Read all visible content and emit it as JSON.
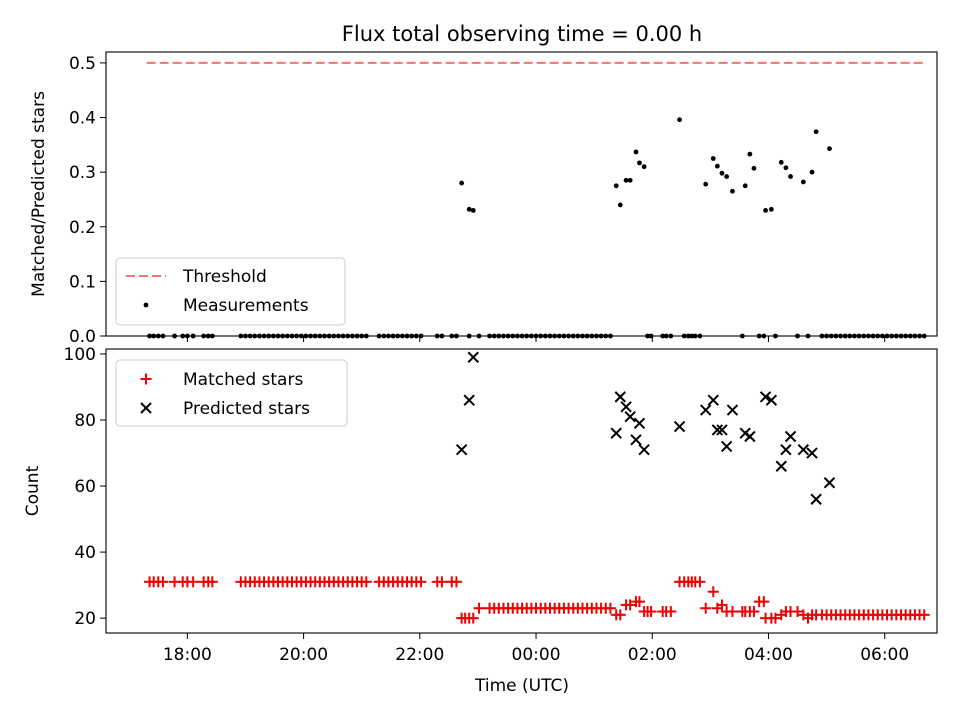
{
  "title": "Flux total observing time = 0.00 h",
  "colors": {
    "threshold": "#ff7070",
    "measurement": "#000000",
    "matched": "#ee0000",
    "predicted": "#000000"
  },
  "chart_data": [
    {
      "type": "scatter",
      "ylabel": "Matched/Predicted stars",
      "ylim": [
        0,
        0.52
      ],
      "yticks": [
        "0.0",
        "0.1",
        "0.2",
        "0.3",
        "0.4",
        "0.5"
      ],
      "xlim": [
        16.6,
        30.9
      ],
      "legend": {
        "placement": "lower-left",
        "entries": [
          "Threshold",
          "Measurements"
        ]
      },
      "threshold": {
        "name": "Threshold",
        "value": 0.5,
        "x_range": [
          17.3,
          30.7
        ]
      },
      "measurements": {
        "name": "Measurements",
        "x": [
          22.72,
          22.85,
          22.92,
          25.38,
          25.45,
          25.55,
          25.62,
          25.72,
          25.78,
          25.86,
          26.47,
          26.92,
          27.05,
          27.12,
          27.2,
          27.28,
          27.38,
          27.6,
          27.68,
          27.75,
          27.95,
          28.05,
          28.22,
          28.3,
          28.38,
          28.6,
          28.75,
          28.82,
          29.05
        ],
        "y": [
          0.28,
          0.232,
          0.23,
          0.275,
          0.24,
          0.285,
          0.285,
          0.337,
          0.317,
          0.31,
          0.396,
          0.278,
          0.325,
          0.311,
          0.298,
          0.292,
          0.265,
          0.275,
          0.333,
          0.307,
          0.23,
          0.232,
          0.318,
          0.308,
          0.292,
          0.282,
          0.3,
          0.374,
          0.343
        ],
        "zero_x": [
          17.35,
          17.42,
          17.5,
          17.58,
          17.78,
          17.92,
          18.0,
          18.1,
          18.28,
          18.36,
          18.43,
          18.92,
          19.0,
          19.08,
          19.16,
          19.24,
          19.32,
          19.4,
          19.48,
          19.56,
          19.64,
          19.72,
          19.8,
          19.88,
          19.96,
          20.04,
          20.12,
          20.2,
          20.28,
          20.36,
          20.44,
          20.52,
          20.6,
          20.68,
          20.76,
          20.84,
          20.92,
          21.0,
          21.08,
          21.3,
          21.38,
          21.46,
          21.54,
          21.62,
          21.7,
          21.78,
          21.86,
          21.94,
          22.02,
          22.3,
          22.38,
          22.55,
          22.63,
          22.85,
          23.02,
          23.2,
          23.28,
          23.36,
          23.44,
          23.52,
          23.6,
          23.68,
          23.76,
          23.84,
          23.92,
          24.0,
          24.08,
          24.16,
          24.24,
          24.32,
          24.4,
          24.48,
          24.56,
          24.64,
          24.72,
          24.8,
          24.88,
          24.96,
          25.04,
          25.12,
          25.2,
          25.28,
          25.92,
          25.98,
          26.18,
          26.24,
          26.32,
          26.55,
          26.62,
          26.68,
          26.74,
          26.82,
          27.55,
          27.84,
          27.92,
          28.12,
          28.5,
          28.68,
          28.92,
          29.0,
          29.08,
          29.16,
          29.24,
          29.32,
          29.4,
          29.48,
          29.56,
          29.64,
          29.72,
          29.8,
          29.88,
          29.96,
          30.04,
          30.12,
          30.2,
          30.28,
          30.36,
          30.44,
          30.52,
          30.6,
          30.68
        ]
      }
    },
    {
      "type": "scatter",
      "xlabel": "Time (UTC)",
      "ylabel": "Count",
      "ylim": [
        15.5,
        101.5
      ],
      "yticks": [
        "20",
        "40",
        "60",
        "80",
        "100"
      ],
      "xlim": [
        16.6,
        30.9
      ],
      "xticks": [
        {
          "value": 18,
          "label": "18:00"
        },
        {
          "value": 20,
          "label": "20:00"
        },
        {
          "value": 22,
          "label": "22:00"
        },
        {
          "value": 24,
          "label": "00:00"
        },
        {
          "value": 26,
          "label": "02:00"
        },
        {
          "value": 28,
          "label": "04:00"
        },
        {
          "value": 30,
          "label": "06:00"
        }
      ],
      "legend": {
        "placement": "upper-left",
        "entries": [
          "Matched stars",
          "Predicted stars"
        ]
      },
      "matched": {
        "name": "Matched stars",
        "x": [
          17.35,
          17.42,
          17.5,
          17.58,
          17.78,
          17.92,
          18.0,
          18.1,
          18.28,
          18.36,
          18.43,
          18.92,
          19.0,
          19.08,
          19.16,
          19.24,
          19.32,
          19.4,
          19.48,
          19.56,
          19.64,
          19.72,
          19.8,
          19.88,
          19.96,
          20.04,
          20.12,
          20.2,
          20.28,
          20.36,
          20.44,
          20.52,
          20.6,
          20.68,
          20.76,
          20.84,
          20.92,
          21.0,
          21.08,
          21.3,
          21.38,
          21.46,
          21.54,
          21.62,
          21.7,
          21.78,
          21.86,
          21.94,
          22.02,
          22.3,
          22.38,
          22.55,
          22.63,
          22.72,
          22.78,
          22.85,
          22.92,
          23.02,
          23.2,
          23.28,
          23.36,
          23.44,
          23.52,
          23.6,
          23.68,
          23.76,
          23.84,
          23.92,
          24.0,
          24.08,
          24.16,
          24.24,
          24.32,
          24.4,
          24.48,
          24.56,
          24.64,
          24.72,
          24.8,
          24.88,
          24.96,
          25.04,
          25.12,
          25.2,
          25.28,
          25.38,
          25.45,
          25.55,
          25.62,
          25.72,
          25.78,
          25.86,
          25.92,
          25.98,
          26.18,
          26.24,
          26.32,
          26.47,
          26.55,
          26.62,
          26.68,
          26.74,
          26.82,
          26.92,
          27.05,
          27.12,
          27.2,
          27.28,
          27.38,
          27.55,
          27.6,
          27.68,
          27.75,
          27.84,
          27.92,
          27.95,
          28.05,
          28.12,
          28.22,
          28.3,
          28.38,
          28.5,
          28.6,
          28.68,
          28.75,
          28.82,
          28.92,
          29.0,
          29.08,
          29.16,
          29.24,
          29.32,
          29.4,
          29.48,
          29.56,
          29.64,
          29.72,
          29.8,
          29.88,
          29.96,
          30.04,
          30.12,
          30.2,
          30.28,
          30.36,
          30.44,
          30.52,
          30.6,
          30.68
        ],
        "y": [
          31,
          31,
          31,
          31,
          31,
          31,
          31,
          31,
          31,
          31,
          31,
          31,
          31,
          31,
          31,
          31,
          31,
          31,
          31,
          31,
          31,
          31,
          31,
          31,
          31,
          31,
          31,
          31,
          31,
          31,
          31,
          31,
          31,
          31,
          31,
          31,
          31,
          31,
          31,
          31,
          31,
          31,
          31,
          31,
          31,
          31,
          31,
          31,
          31,
          31,
          31,
          31,
          31,
          20,
          20,
          20,
          20,
          23,
          23,
          23,
          23,
          23,
          23,
          23,
          23,
          23,
          23,
          23,
          23,
          23,
          23,
          23,
          23,
          23,
          23,
          23,
          23,
          23,
          23,
          23,
          23,
          23,
          23,
          23,
          23,
          21,
          21,
          24,
          24,
          25,
          25,
          22,
          22,
          22,
          22,
          22,
          22,
          31,
          31,
          31,
          31,
          31,
          31,
          23,
          28,
          23,
          24,
          22,
          22,
          22,
          22,
          22,
          22,
          25,
          25,
          20,
          20,
          20,
          21,
          22,
          22,
          22,
          21,
          20,
          21,
          21,
          21,
          21,
          21,
          21,
          21,
          21,
          21,
          21,
          21,
          21,
          21,
          21,
          21,
          21,
          21,
          21,
          21,
          21,
          21,
          21,
          21,
          21,
          21
        ]
      },
      "predicted": {
        "name": "Predicted stars",
        "x": [
          22.72,
          22.85,
          22.92,
          25.38,
          25.45,
          25.55,
          25.62,
          25.72,
          25.78,
          25.86,
          26.47,
          26.92,
          27.05,
          27.12,
          27.2,
          27.28,
          27.38,
          27.6,
          27.68,
          27.95,
          28.05,
          28.22,
          28.3,
          28.38,
          28.6,
          28.75,
          28.82,
          29.05
        ],
        "y": [
          71,
          86,
          99,
          76,
          87,
          84,
          81,
          74,
          79,
          71,
          78,
          83,
          86,
          77,
          77,
          72,
          83,
          76,
          75,
          87,
          86,
          66,
          71,
          75,
          71,
          70,
          56,
          61
        ]
      }
    }
  ]
}
